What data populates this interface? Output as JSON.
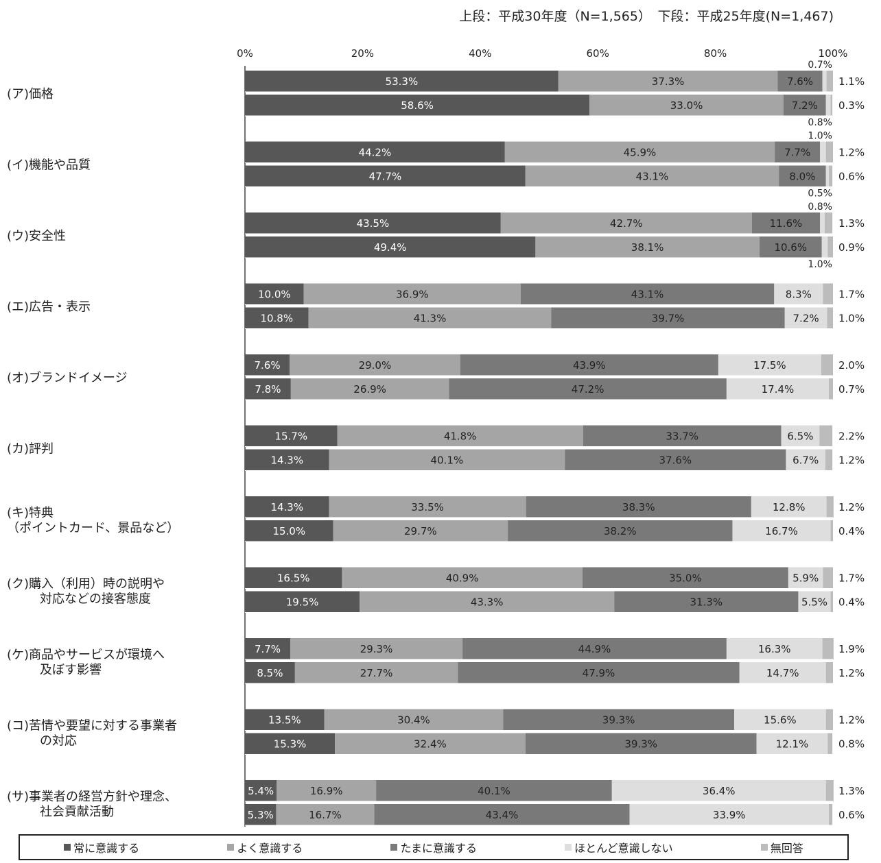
{
  "chart_data": {
    "type": "bar",
    "orientation": "horizontal",
    "stacked": true,
    "title": "上段：平成30年度（N=1,565）　下段：平成25年度(N=1,467)",
    "xlim": [
      0,
      100
    ],
    "xticks": [
      "0%",
      "20%",
      "40%",
      "60%",
      "80%",
      "100%"
    ],
    "series_names": [
      "常に意識する",
      "よく意識する",
      "たまに意識する",
      "ほとんど意識しない",
      "無回答"
    ],
    "colors": [
      "#575757",
      "#a5a5a5",
      "#797979",
      "#dedede",
      "#bcbcbc"
    ],
    "categories": [
      {
        "label": [
          "(ア)価格"
        ],
        "bars": [
          [
            53.3,
            37.3,
            7.6,
            0.7,
            1.1
          ],
          [
            58.6,
            33.0,
            7.2,
            0.8,
            0.3
          ]
        ]
      },
      {
        "label": [
          "(イ)機能や品質"
        ],
        "bars": [
          [
            44.2,
            45.9,
            7.7,
            1.0,
            1.2
          ],
          [
            47.7,
            43.1,
            8.0,
            0.5,
            0.6
          ]
        ]
      },
      {
        "label": [
          "(ウ)安全性"
        ],
        "bars": [
          [
            43.5,
            42.7,
            11.6,
            0.8,
            1.3
          ],
          [
            49.4,
            38.1,
            10.6,
            1.0,
            0.9
          ]
        ]
      },
      {
        "label": [
          "(エ)広告・表示"
        ],
        "bars": [
          [
            10.0,
            36.9,
            43.1,
            8.3,
            1.7
          ],
          [
            10.8,
            41.3,
            39.7,
            7.2,
            1.0
          ]
        ]
      },
      {
        "label": [
          "(オ)ブランドイメージ"
        ],
        "bars": [
          [
            7.6,
            29.0,
            43.9,
            17.5,
            2.0
          ],
          [
            7.8,
            26.9,
            47.2,
            17.4,
            0.7
          ]
        ]
      },
      {
        "label": [
          "(カ)評判"
        ],
        "bars": [
          [
            15.7,
            41.8,
            33.7,
            6.5,
            2.2
          ],
          [
            14.3,
            40.1,
            37.6,
            6.7,
            1.2
          ]
        ]
      },
      {
        "label": [
          "(キ)特典",
          "（ポイントカード、景品など）"
        ],
        "bars": [
          [
            14.3,
            33.5,
            38.3,
            12.8,
            1.2
          ],
          [
            15.0,
            29.7,
            38.2,
            16.7,
            0.4
          ]
        ]
      },
      {
        "label": [
          "(ク)購入（利用）時の説明や",
          "対応などの接客態度"
        ],
        "bars": [
          [
            16.5,
            40.9,
            35.0,
            5.9,
            1.7
          ],
          [
            19.5,
            43.3,
            31.3,
            5.5,
            0.4
          ]
        ]
      },
      {
        "label": [
          "(ケ)商品やサービスが環境へ",
          "及ぼす影響"
        ],
        "bars": [
          [
            7.7,
            29.3,
            44.9,
            16.3,
            1.9
          ],
          [
            8.5,
            27.7,
            47.9,
            14.7,
            1.2
          ]
        ]
      },
      {
        "label": [
          "(コ)苦情や要望に対する事業者",
          "の対応"
        ],
        "bars": [
          [
            13.5,
            30.4,
            39.3,
            15.6,
            1.2
          ],
          [
            15.3,
            32.4,
            39.3,
            12.1,
            0.8
          ]
        ]
      },
      {
        "label": [
          "(サ)事業者の経営方針や理念、",
          "社会貢献活動"
        ],
        "bars": [
          [
            5.4,
            16.9,
            40.1,
            36.4,
            1.3
          ],
          [
            5.3,
            16.7,
            43.4,
            33.9,
            0.6
          ]
        ]
      }
    ],
    "legend_position": "bottom",
    "grid": false
  }
}
